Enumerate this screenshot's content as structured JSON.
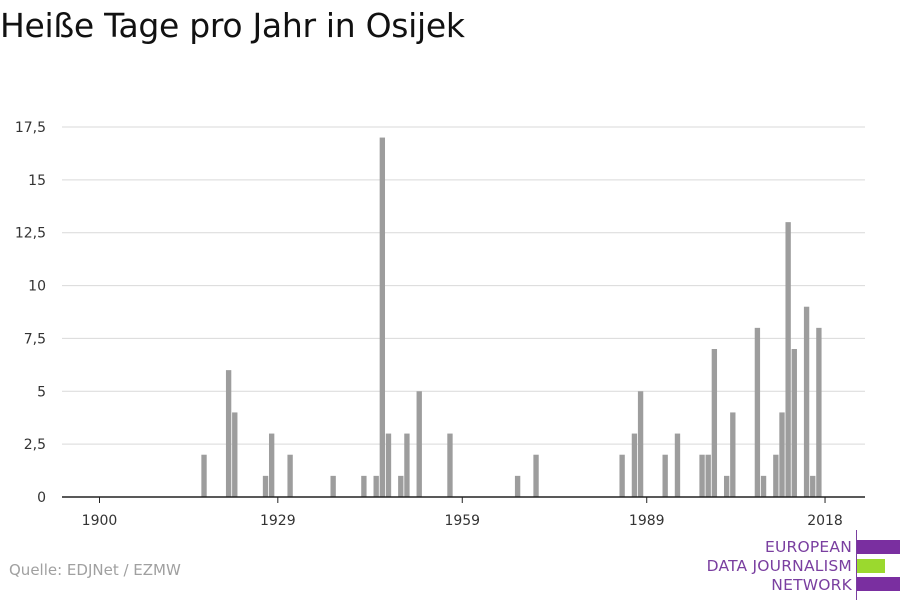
{
  "title": "Heiße Tage pro Jahr in Osijek",
  "source": "Quelle: EDJNet / EZMW",
  "logo": {
    "lines": [
      "EUROPEAN",
      "DATA JOURNALISM",
      "NETWORK"
    ],
    "colors": [
      "#7a2fa0",
      "#9bd92e",
      "#7a2fa0"
    ]
  },
  "colors": {
    "bar": "#9d9d9d",
    "grid": "#d9d9d9",
    "axis": "#222222"
  },
  "chart_data": {
    "type": "bar",
    "title": "Heiße Tage pro Jahr in Osijek",
    "xlabel": "",
    "ylabel": "",
    "xlim": [
      1893.9,
      2024.5
    ],
    "ylim": [
      0,
      17.5
    ],
    "grid": true,
    "x_ticks": [
      1900,
      1929,
      1959,
      1989,
      2018
    ],
    "y_ticks": [
      "0",
      "2,5",
      "5",
      "7,5",
      "10",
      "12,5",
      "15",
      "17,5"
    ],
    "y_tick_values": [
      0,
      2.5,
      5,
      7.5,
      10,
      12.5,
      15,
      17.5
    ],
    "series": [
      {
        "x": [
          1917,
          1921,
          1922,
          1927,
          1928,
          1931,
          1938,
          1943,
          1945,
          1946,
          1947,
          1949,
          1950,
          1952,
          1957,
          1968,
          1971,
          1985,
          1987,
          1988,
          1992,
          1994,
          1998,
          1999,
          2000,
          2002,
          2003,
          2007,
          2008,
          2010,
          2011,
          2012,
          2013,
          2015,
          2016,
          2017
        ],
        "values": [
          2,
          6,
          4,
          1,
          3,
          2,
          1,
          1,
          1,
          17,
          3,
          1,
          3,
          5,
          3,
          1,
          2,
          2,
          3,
          5,
          2,
          3,
          2,
          2,
          7,
          1,
          4,
          8,
          1,
          2,
          4,
          13,
          7,
          9,
          1,
          8
        ]
      }
    ]
  }
}
